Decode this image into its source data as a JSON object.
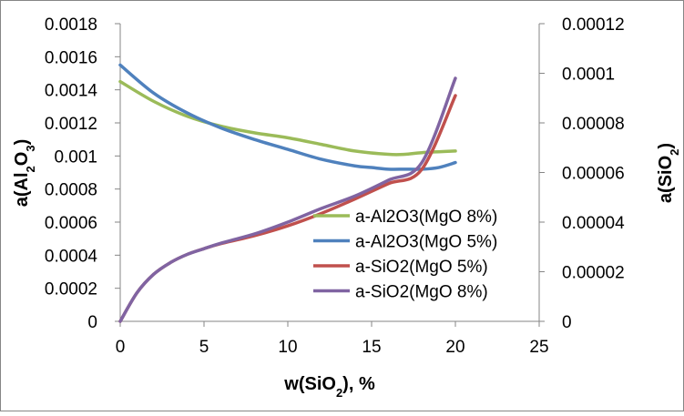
{
  "chart_data": {
    "type": "line",
    "title": "",
    "xlabel": "w(SiO2), %",
    "xlabel_parts": [
      {
        "text": "w(SiO",
        "sub": false
      },
      {
        "text": "2",
        "sub": true
      },
      {
        "text": "), %",
        "sub": false
      }
    ],
    "ylabel_left": "a(Al2O3)",
    "ylabel_left_parts": [
      {
        "text": "a(Al",
        "sub": false
      },
      {
        "text": "2",
        "sub": true
      },
      {
        "text": "O",
        "sub": false
      },
      {
        "text": "3",
        "sub": true
      },
      {
        "text": ")",
        "sub": false
      }
    ],
    "ylabel_right": "a(SiO2)",
    "ylabel_right_parts": [
      {
        "text": "a(SiO",
        "sub": false
      },
      {
        "text": "2",
        "sub": true
      },
      {
        "text": ")",
        "sub": false
      }
    ],
    "xlim": [
      0,
      25
    ],
    "ylim_left": [
      0,
      0.0018
    ],
    "ylim_right": [
      0,
      0.00012
    ],
    "x_ticks": [
      "0",
      "5",
      "10",
      "15",
      "20",
      "25"
    ],
    "x_tick_values": [
      0,
      5,
      10,
      15,
      20,
      25
    ],
    "y_left_ticks": [
      "0",
      "0.0002",
      "0.0004",
      "0.0006",
      "0.0008",
      "0.001",
      "0.0012",
      "0.0014",
      "0.0016",
      "0.0018"
    ],
    "y_left_tick_values": [
      0,
      0.0002,
      0.0004,
      0.0006,
      0.0008,
      0.001,
      0.0012,
      0.0014,
      0.0016,
      0.0018
    ],
    "y_right_ticks": [
      "0",
      "0.00002",
      "0.00004",
      "0.00006",
      "0.00008",
      "0.0001",
      "0.00012"
    ],
    "y_right_tick_values": [
      0,
      2e-05,
      4e-05,
      6e-05,
      8e-05,
      0.0001,
      0.00012
    ],
    "grid": false,
    "legend_position": "center-right",
    "series": [
      {
        "name": "a-Al2O3(MgO 8%)",
        "axis": "left",
        "color": "#9bbb59",
        "x": [
          0,
          2,
          4,
          6,
          8,
          10,
          12,
          14,
          16,
          17,
          18,
          20
        ],
        "y": [
          0.00145,
          0.00133,
          0.00124,
          0.00118,
          0.00114,
          0.00111,
          0.00107,
          0.00103,
          0.00101,
          0.00101,
          0.00102,
          0.00103
        ]
      },
      {
        "name": "a-Al2O3(MgO 5%)",
        "axis": "left",
        "color": "#4f81bd",
        "x": [
          0,
          2,
          4,
          6,
          8,
          10,
          12,
          14,
          15,
          16,
          17,
          18,
          19,
          20
        ],
        "y": [
          0.00155,
          0.00138,
          0.00126,
          0.00117,
          0.0011,
          0.00104,
          0.00098,
          0.00094,
          0.00093,
          0.00092,
          0.00092,
          0.00092,
          0.00093,
          0.00096
        ]
      },
      {
        "name": "a-SiO2(MgO 5%)",
        "axis": "right",
        "color": "#c0504d",
        "x": [
          0,
          1,
          2,
          3,
          4,
          5,
          6,
          8,
          10,
          12,
          14,
          16,
          18,
          20
        ],
        "y": [
          0,
          1.15e-05,
          1.9e-05,
          2.37e-05,
          2.7e-05,
          2.93e-05,
          3.13e-05,
          3.45e-05,
          3.85e-05,
          4.35e-05,
          4.93e-05,
          5.55e-05,
          6.13e-05,
          9.1e-05
        ]
      },
      {
        "name": "a-SiO2(MgO 8%)",
        "axis": "right",
        "color": "#8064a2",
        "x": [
          0,
          1,
          2,
          3,
          4,
          5,
          6,
          8,
          10,
          12,
          14,
          16,
          18,
          20
        ],
        "y": [
          0,
          1.15e-05,
          1.9e-05,
          2.37e-05,
          2.7e-05,
          2.93e-05,
          3.15e-05,
          3.52e-05,
          4e-05,
          4.55e-05,
          5.05e-05,
          5.69e-05,
          6.4e-05,
          9.8e-05
        ]
      }
    ]
  }
}
